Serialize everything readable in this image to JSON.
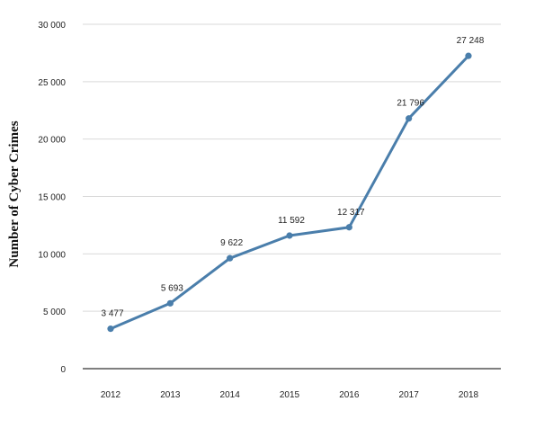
{
  "chart_data": {
    "type": "line",
    "title": "",
    "xlabel": "",
    "ylabel": "Number of Cyber Crimes",
    "categories": [
      "2012",
      "2013",
      "2014",
      "2015",
      "2016",
      "2017",
      "2018"
    ],
    "series": [
      {
        "values": [
          3477,
          5693,
          9622,
          11592,
          12317,
          21796,
          27248
        ],
        "data_labels": [
          "3 477",
          "5 693",
          "9 622",
          "11 592",
          "12 317",
          "21 796",
          "27 248"
        ]
      }
    ],
    "ylim": [
      0,
      30000
    ],
    "yticks": [
      0,
      5000,
      10000,
      15000,
      20000,
      25000,
      30000
    ],
    "ytick_labels": [
      "0",
      "5 000",
      "10 000",
      "15 000",
      "20 000",
      "25 000",
      "30 000"
    ],
    "grid": "horizontal",
    "legend": "none",
    "line_color": "#4a7eab"
  }
}
